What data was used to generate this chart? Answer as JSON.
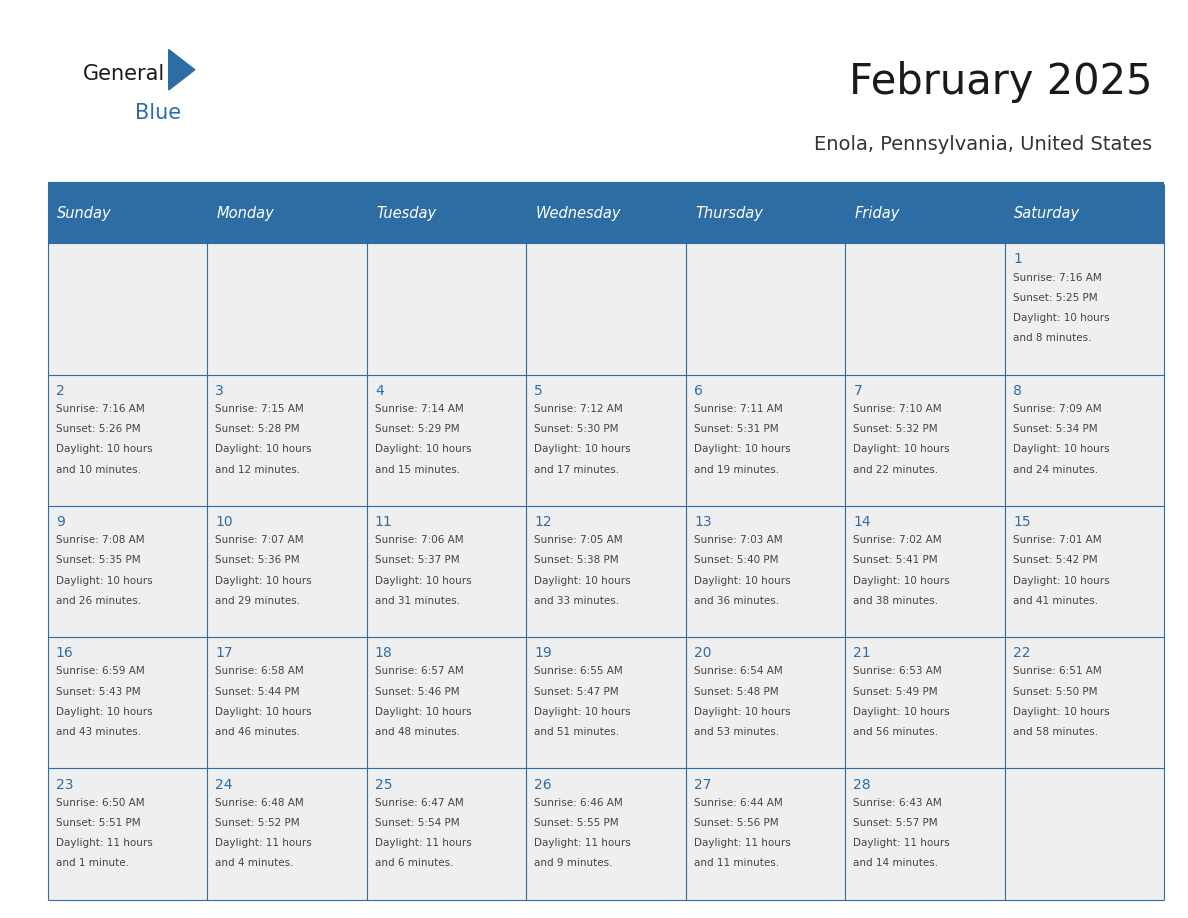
{
  "title": "February 2025",
  "subtitle": "Enola, Pennsylvania, United States",
  "days_of_week": [
    "Sunday",
    "Monday",
    "Tuesday",
    "Wednesday",
    "Thursday",
    "Friday",
    "Saturday"
  ],
  "header_bg": "#2E6DA4",
  "header_text": "#FFFFFF",
  "cell_bg": "#EFEFEF",
  "border_color": "#2E6DA4",
  "day_num_color": "#2E6DA4",
  "cell_text_color": "#444444",
  "title_color": "#1a1a1a",
  "subtitle_color": "#333333",
  "logo_general_color": "#1a1a1a",
  "logo_blue_color": "#2E6DA4",
  "calendar_data": [
    [
      null,
      null,
      null,
      null,
      null,
      null,
      {
        "day": 1,
        "sunrise": "7:16 AM",
        "sunset": "5:25 PM",
        "daylight": "10 hours\nand 8 minutes."
      }
    ],
    [
      {
        "day": 2,
        "sunrise": "7:16 AM",
        "sunset": "5:26 PM",
        "daylight": "10 hours\nand 10 minutes."
      },
      {
        "day": 3,
        "sunrise": "7:15 AM",
        "sunset": "5:28 PM",
        "daylight": "10 hours\nand 12 minutes."
      },
      {
        "day": 4,
        "sunrise": "7:14 AM",
        "sunset": "5:29 PM",
        "daylight": "10 hours\nand 15 minutes."
      },
      {
        "day": 5,
        "sunrise": "7:12 AM",
        "sunset": "5:30 PM",
        "daylight": "10 hours\nand 17 minutes."
      },
      {
        "day": 6,
        "sunrise": "7:11 AM",
        "sunset": "5:31 PM",
        "daylight": "10 hours\nand 19 minutes."
      },
      {
        "day": 7,
        "sunrise": "7:10 AM",
        "sunset": "5:32 PM",
        "daylight": "10 hours\nand 22 minutes."
      },
      {
        "day": 8,
        "sunrise": "7:09 AM",
        "sunset": "5:34 PM",
        "daylight": "10 hours\nand 24 minutes."
      }
    ],
    [
      {
        "day": 9,
        "sunrise": "7:08 AM",
        "sunset": "5:35 PM",
        "daylight": "10 hours\nand 26 minutes."
      },
      {
        "day": 10,
        "sunrise": "7:07 AM",
        "sunset": "5:36 PM",
        "daylight": "10 hours\nand 29 minutes."
      },
      {
        "day": 11,
        "sunrise": "7:06 AM",
        "sunset": "5:37 PM",
        "daylight": "10 hours\nand 31 minutes."
      },
      {
        "day": 12,
        "sunrise": "7:05 AM",
        "sunset": "5:38 PM",
        "daylight": "10 hours\nand 33 minutes."
      },
      {
        "day": 13,
        "sunrise": "7:03 AM",
        "sunset": "5:40 PM",
        "daylight": "10 hours\nand 36 minutes."
      },
      {
        "day": 14,
        "sunrise": "7:02 AM",
        "sunset": "5:41 PM",
        "daylight": "10 hours\nand 38 minutes."
      },
      {
        "day": 15,
        "sunrise": "7:01 AM",
        "sunset": "5:42 PM",
        "daylight": "10 hours\nand 41 minutes."
      }
    ],
    [
      {
        "day": 16,
        "sunrise": "6:59 AM",
        "sunset": "5:43 PM",
        "daylight": "10 hours\nand 43 minutes."
      },
      {
        "day": 17,
        "sunrise": "6:58 AM",
        "sunset": "5:44 PM",
        "daylight": "10 hours\nand 46 minutes."
      },
      {
        "day": 18,
        "sunrise": "6:57 AM",
        "sunset": "5:46 PM",
        "daylight": "10 hours\nand 48 minutes."
      },
      {
        "day": 19,
        "sunrise": "6:55 AM",
        "sunset": "5:47 PM",
        "daylight": "10 hours\nand 51 minutes."
      },
      {
        "day": 20,
        "sunrise": "6:54 AM",
        "sunset": "5:48 PM",
        "daylight": "10 hours\nand 53 minutes."
      },
      {
        "day": 21,
        "sunrise": "6:53 AM",
        "sunset": "5:49 PM",
        "daylight": "10 hours\nand 56 minutes."
      },
      {
        "day": 22,
        "sunrise": "6:51 AM",
        "sunset": "5:50 PM",
        "daylight": "10 hours\nand 58 minutes."
      }
    ],
    [
      {
        "day": 23,
        "sunrise": "6:50 AM",
        "sunset": "5:51 PM",
        "daylight": "11 hours\nand 1 minute."
      },
      {
        "day": 24,
        "sunrise": "6:48 AM",
        "sunset": "5:52 PM",
        "daylight": "11 hours\nand 4 minutes."
      },
      {
        "day": 25,
        "sunrise": "6:47 AM",
        "sunset": "5:54 PM",
        "daylight": "11 hours\nand 6 minutes."
      },
      {
        "day": 26,
        "sunrise": "6:46 AM",
        "sunset": "5:55 PM",
        "daylight": "11 hours\nand 9 minutes."
      },
      {
        "day": 27,
        "sunrise": "6:44 AM",
        "sunset": "5:56 PM",
        "daylight": "11 hours\nand 11 minutes."
      },
      {
        "day": 28,
        "sunrise": "6:43 AM",
        "sunset": "5:57 PM",
        "daylight": "11 hours\nand 14 minutes."
      },
      null
    ]
  ]
}
